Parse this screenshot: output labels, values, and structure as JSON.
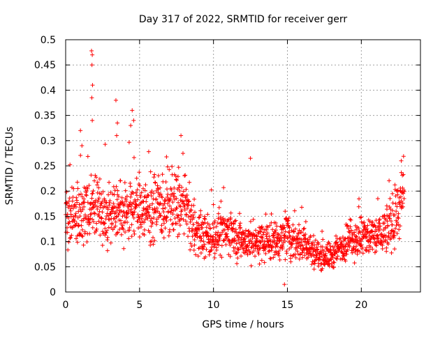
{
  "chart_data": {
    "type": "scatter",
    "title": "Day 317 of 2022, SRMTID for receiver gerr",
    "xlabel": "GPS time / hours",
    "ylabel": "SRMTID / TECUs",
    "xlim": [
      0,
      24
    ],
    "ylim": [
      0,
      0.5
    ],
    "xticks": [
      0,
      5,
      10,
      15,
      20
    ],
    "xtick_labels": [
      "0",
      "5",
      "10",
      "15",
      "20"
    ],
    "yticks": [
      0,
      0.05,
      0.1,
      0.15,
      0.2,
      0.25,
      0.3,
      0.35,
      0.4,
      0.45,
      0.5
    ],
    "ytick_labels": [
      "0",
      "0.05",
      "0.1",
      "0.15",
      "0.2",
      "0.25",
      "0.3",
      "0.35",
      "0.4",
      "0.45",
      "0.5"
    ],
    "grid": true,
    "marker": "plus",
    "color": "#ff0000",
    "x_range": [
      0,
      22.9
    ],
    "y_range": [
      0.015,
      0.478
    ],
    "trend": [
      {
        "x": 0.0,
        "y": 0.15
      },
      {
        "x": 1.0,
        "y": 0.16
      },
      {
        "x": 2.0,
        "y": 0.17
      },
      {
        "x": 3.0,
        "y": 0.15
      },
      {
        "x": 4.0,
        "y": 0.16
      },
      {
        "x": 5.0,
        "y": 0.17
      },
      {
        "x": 6.0,
        "y": 0.16
      },
      {
        "x": 7.0,
        "y": 0.17
      },
      {
        "x": 8.0,
        "y": 0.17
      },
      {
        "x": 9.0,
        "y": 0.11
      },
      {
        "x": 10.0,
        "y": 0.11
      },
      {
        "x": 11.0,
        "y": 0.12
      },
      {
        "x": 12.0,
        "y": 0.1
      },
      {
        "x": 13.0,
        "y": 0.1
      },
      {
        "x": 14.0,
        "y": 0.1
      },
      {
        "x": 15.0,
        "y": 0.11
      },
      {
        "x": 16.0,
        "y": 0.1
      },
      {
        "x": 17.0,
        "y": 0.075
      },
      {
        "x": 18.0,
        "y": 0.07
      },
      {
        "x": 19.0,
        "y": 0.1
      },
      {
        "x": 20.0,
        "y": 0.11
      },
      {
        "x": 21.0,
        "y": 0.11
      },
      {
        "x": 22.0,
        "y": 0.13
      },
      {
        "x": 22.9,
        "y": 0.19
      }
    ],
    "spikes": [
      {
        "x": 1.0,
        "y": 0.32
      },
      {
        "x": 1.1,
        "y": 0.29
      },
      {
        "x": 1.75,
        "y": 0.478
      },
      {
        "x": 1.8,
        "y": 0.47
      },
      {
        "x": 1.78,
        "y": 0.45
      },
      {
        "x": 1.82,
        "y": 0.41
      },
      {
        "x": 1.77,
        "y": 0.385
      },
      {
        "x": 1.8,
        "y": 0.34
      },
      {
        "x": 3.4,
        "y": 0.38
      },
      {
        "x": 3.5,
        "y": 0.335
      },
      {
        "x": 3.45,
        "y": 0.31
      },
      {
        "x": 4.5,
        "y": 0.36
      },
      {
        "x": 4.4,
        "y": 0.33
      },
      {
        "x": 4.6,
        "y": 0.34
      },
      {
        "x": 7.8,
        "y": 0.31
      },
      {
        "x": 12.5,
        "y": 0.265
      },
      {
        "x": 22.7,
        "y": 0.26
      },
      {
        "x": 14.8,
        "y": 0.015
      }
    ]
  }
}
